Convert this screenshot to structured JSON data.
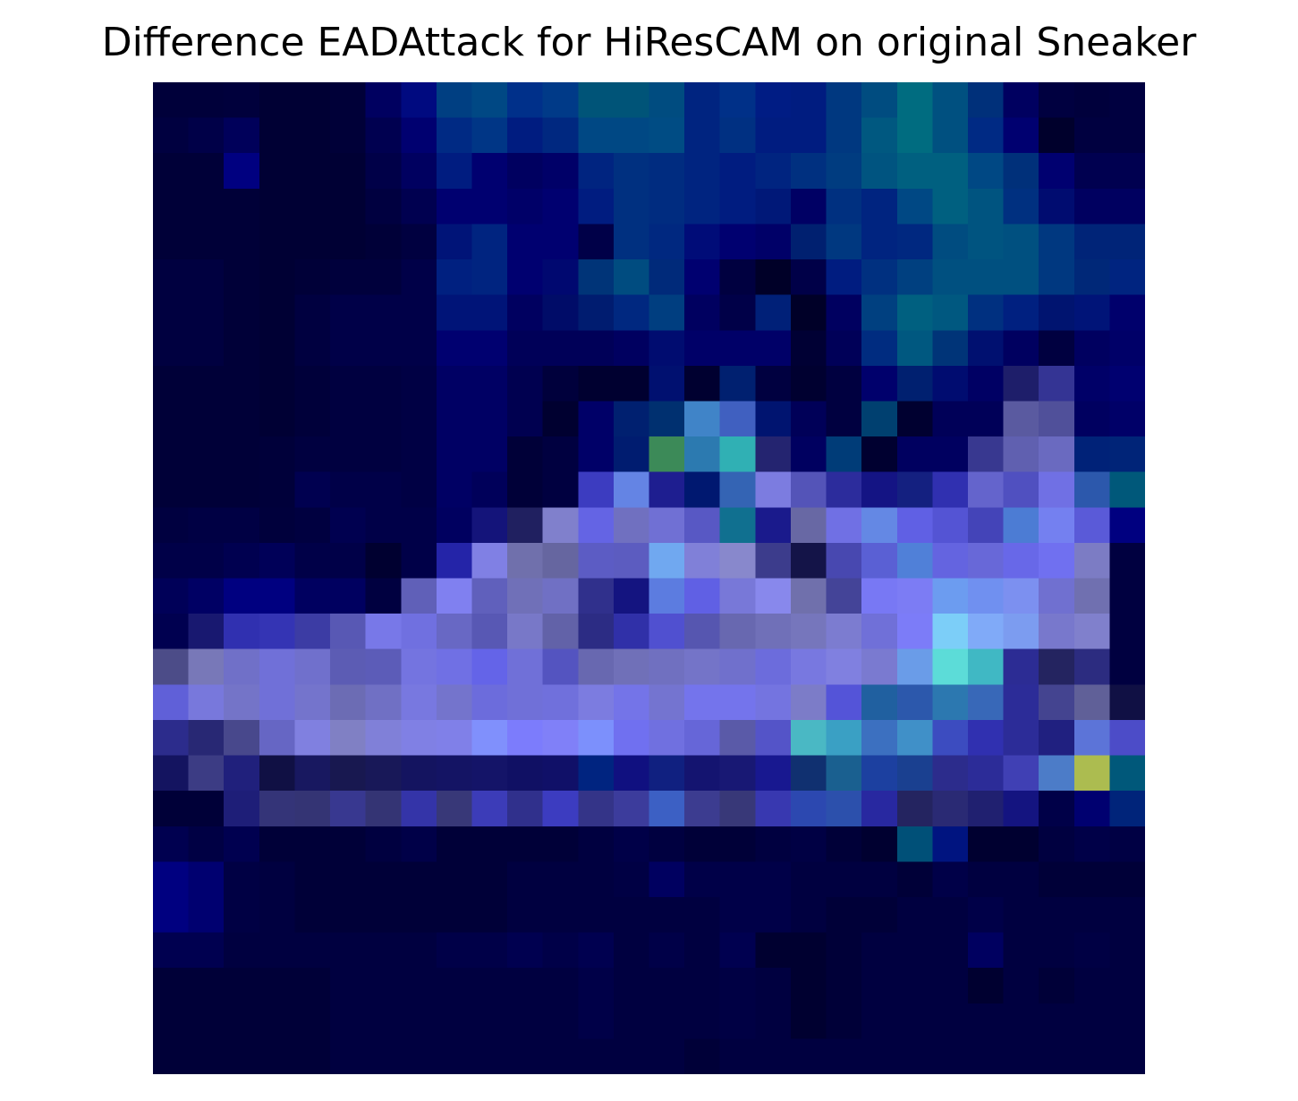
{
  "chart_data": {
    "type": "heatmap",
    "title": "Difference EADAttack for HiResCAM on original Sneaker",
    "xlabel": "",
    "ylabel": "",
    "axes_visible": false,
    "grid": false,
    "rows": 28,
    "cols": 28,
    "cells": [
      [
        "#00003a",
        "#00003a",
        "#00003c",
        "#000034",
        "#000034",
        "#000038",
        "#000060",
        "#000a80",
        "#003f82",
        "#004884",
        "#00308a",
        "#003a88",
        "#005478",
        "#005478",
        "#004c80",
        "#002480",
        "#003088",
        "#001c84",
        "#001c80",
        "#003880",
        "#004c80",
        "#006c80",
        "#005080",
        "#00307a",
        "#000060",
        "#000040",
        "#00003c",
        "#000040"
      ],
      [
        "#000040",
        "#000048",
        "#00005a",
        "#000034",
        "#000034",
        "#000038",
        "#000050",
        "#000070",
        "#002a84",
        "#003686",
        "#001c80",
        "#002880",
        "#004884",
        "#004884",
        "#004c84",
        "#002480",
        "#003082",
        "#001c80",
        "#001c80",
        "#003880",
        "#005880",
        "#006c80",
        "#005080",
        "#002a84",
        "#000070",
        "#00002c",
        "#000040",
        "#000040"
      ],
      [
        "#000038",
        "#000038",
        "#000080",
        "#000034",
        "#000034",
        "#000034",
        "#000048",
        "#000060",
        "#001c80",
        "#000070",
        "#000060",
        "#000068",
        "#002480",
        "#003080",
        "#002c80",
        "#002480",
        "#001c80",
        "#002480",
        "#003080",
        "#003c80",
        "#005480",
        "#006080",
        "#006080",
        "#004884",
        "#00307a",
        "#000070",
        "#000050",
        "#000050"
      ],
      [
        "#000038",
        "#000038",
        "#000038",
        "#000034",
        "#000034",
        "#000034",
        "#000040",
        "#000050",
        "#000070",
        "#000070",
        "#000068",
        "#000070",
        "#001c80",
        "#003080",
        "#002c80",
        "#002480",
        "#001c80",
        "#001878",
        "#000064",
        "#003080",
        "#002480",
        "#004884",
        "#006080",
        "#005480",
        "#003080",
        "#000c70",
        "#000060",
        "#000060"
      ],
      [
        "#000038",
        "#000038",
        "#000038",
        "#000034",
        "#000034",
        "#000034",
        "#000038",
        "#000040",
        "#001478",
        "#002480",
        "#000070",
        "#000070",
        "#000048",
        "#003080",
        "#002880",
        "#000c78",
        "#000070",
        "#000068",
        "#002070",
        "#003880",
        "#002480",
        "#002880",
        "#004c80",
        "#005480",
        "#005080",
        "#003880",
        "#002478",
        "#002478"
      ],
      [
        "#000040",
        "#000040",
        "#000038",
        "#000034",
        "#000038",
        "#00003c",
        "#00003c",
        "#000048",
        "#002080",
        "#002480",
        "#000070",
        "#000870",
        "#003478",
        "#004c80",
        "#002a7a",
        "#000070",
        "#000040",
        "#000028",
        "#000048",
        "#001c80",
        "#003080",
        "#004080",
        "#005080",
        "#005080",
        "#005080",
        "#003880",
        "#002878",
        "#002480"
      ],
      [
        "#000040",
        "#000040",
        "#000038",
        "#000034",
        "#000040",
        "#000048",
        "#000048",
        "#000048",
        "#001478",
        "#001478",
        "#000060",
        "#000c68",
        "#001c70",
        "#002880",
        "#003e80",
        "#000060",
        "#000048",
        "#002078",
        "#000028",
        "#000060",
        "#004080",
        "#006080",
        "#005880",
        "#003080",
        "#002080",
        "#001470",
        "#001478",
        "#00006c"
      ],
      [
        "#000040",
        "#000040",
        "#000038",
        "#000034",
        "#000040",
        "#000048",
        "#000048",
        "#000048",
        "#000070",
        "#000070",
        "#000058",
        "#000058",
        "#000058",
        "#000060",
        "#000c70",
        "#000068",
        "#000068",
        "#000068",
        "#000034",
        "#000058",
        "#002c80",
        "#005880",
        "#003478",
        "#001070",
        "#000060",
        "#000040",
        "#000060",
        "#000068"
      ],
      [
        "#000038",
        "#000038",
        "#000038",
        "#000034",
        "#00003a",
        "#000040",
        "#000040",
        "#000044",
        "#000064",
        "#000064",
        "#000050",
        "#00003c",
        "#000030",
        "#000030",
        "#001070",
        "#000030",
        "#002070",
        "#000040",
        "#000030",
        "#000040",
        "#00006c",
        "#002070",
        "#000c70",
        "#000064",
        "#1e1e6a",
        "#343494",
        "#000068",
        "#000070"
      ],
      [
        "#000038",
        "#000038",
        "#000038",
        "#000034",
        "#00003a",
        "#000040",
        "#000040",
        "#000044",
        "#000064",
        "#000064",
        "#000050",
        "#000030",
        "#000068",
        "#002070",
        "#003070",
        "#4084c8",
        "#4060c0",
        "#001470",
        "#000058",
        "#000040",
        "#004070",
        "#000030",
        "#000058",
        "#000058",
        "#5a5aa0",
        "#50509a",
        "#000060",
        "#000068"
      ],
      [
        "#000038",
        "#000038",
        "#000038",
        "#00003a",
        "#000040",
        "#000040",
        "#000040",
        "#000044",
        "#000064",
        "#000064",
        "#000038",
        "#000040",
        "#000068",
        "#001c70",
        "#3c8a58",
        "#2c7ab0",
        "#30b0b4",
        "#242470",
        "#000060",
        "#003c78",
        "#000030",
        "#000060",
        "#000060",
        "#383890",
        "#6060b0",
        "#6a6ac0",
        "#002278",
        "#002478"
      ],
      [
        "#000038",
        "#000038",
        "#000038",
        "#00003a",
        "#000050",
        "#000048",
        "#000048",
        "#000044",
        "#000064",
        "#00005a",
        "#000038",
        "#000040",
        "#3c3cc0",
        "#6484e4",
        "#1e1e90",
        "#001870",
        "#3464b4",
        "#7c7ce0",
        "#5454b8",
        "#2c2c9c",
        "#141484",
        "#142080",
        "#3030b0",
        "#6464cc",
        "#5050c0",
        "#7070e4",
        "#2c58ac",
        "#00587a"
      ],
      [
        "#000040",
        "#000044",
        "#000044",
        "#00003c",
        "#000040",
        "#000050",
        "#000048",
        "#000048",
        "#000060",
        "#14147a",
        "#202060",
        "#8080cc",
        "#6464e4",
        "#7070c0",
        "#7070d4",
        "#5858c4",
        "#107090",
        "#1a1a8c",
        "#6868a4",
        "#7070e4",
        "#6488e4",
        "#6060e4",
        "#5454d4",
        "#4444b8",
        "#4c7cd4",
        "#7480f0",
        "#5a5ad8",
        "#000080"
      ],
      [
        "#000048",
        "#000048",
        "#000050",
        "#000058",
        "#000048",
        "#000048",
        "#000030",
        "#000048",
        "#2424a8",
        "#8080e4",
        "#7070ac",
        "#6666a0",
        "#5c5cc4",
        "#5c5cc0",
        "#70a8f0",
        "#8080d8",
        "#8888cc",
        "#3c3c8c",
        "#141448",
        "#4848b0",
        "#5a60d4",
        "#5080d8",
        "#6464e0",
        "#6868d8",
        "#6868e8",
        "#7070f0",
        "#7c7cc4",
        "#000040"
      ],
      [
        "#000058",
        "#000064",
        "#000080",
        "#000080",
        "#000060",
        "#000060",
        "#000040",
        "#6060b8",
        "#8080f0",
        "#6060bc",
        "#7070b8",
        "#7070c4",
        "#30308c",
        "#141480",
        "#5c7ce0",
        "#6060e4",
        "#7878d8",
        "#8888ec",
        "#7070ac",
        "#444498",
        "#7878f4",
        "#7c7cf4",
        "#6c9cf0",
        "#7090f0",
        "#7c90f0",
        "#7070d0",
        "#7070b0",
        "#000040"
      ],
      [
        "#000050",
        "#181870",
        "#3030b0",
        "#3434b4",
        "#3c3ca4",
        "#5858b4",
        "#7878e8",
        "#7070e0",
        "#6868c4",
        "#5858b4",
        "#7878c8",
        "#6262a8",
        "#2c2c84",
        "#3030a8",
        "#5050d0",
        "#5656b0",
        "#6868b0",
        "#7070b8",
        "#7676bc",
        "#7c7cd0",
        "#7070d8",
        "#7c7cf8",
        "#7ccef8",
        "#80aaf8",
        "#7c9cf0",
        "#7878cc",
        "#8080cc",
        "#000040"
      ],
      [
        "#4c4c88",
        "#7878b8",
        "#7070c8",
        "#7070d8",
        "#7070cc",
        "#5c5cb4",
        "#5c5cb8",
        "#7474e0",
        "#7070e4",
        "#6464e8",
        "#7070d8",
        "#5454c0",
        "#6868b0",
        "#7070b8",
        "#7070c0",
        "#7474c8",
        "#7070cc",
        "#6c6cdc",
        "#7878e0",
        "#8080e0",
        "#7a7ad0",
        "#6a9ce8",
        "#5cdcd8",
        "#40b8c4",
        "#2c2c94",
        "#242460",
        "#2c2c80",
        "#000040"
      ],
      [
        "#6060d8",
        "#7878dc",
        "#7474c8",
        "#7070d8",
        "#7474cc",
        "#6c6cb4",
        "#7070c4",
        "#7878e0",
        "#7474cc",
        "#6c6cdc",
        "#7070d8",
        "#7070dc",
        "#7c7ce0",
        "#7474e8",
        "#7474d0",
        "#7474ec",
        "#7474ec",
        "#7474e0",
        "#7c7cc8",
        "#5454d8",
        "#2060a0",
        "#2c58ac",
        "#2c78b0",
        "#3868b8",
        "#2c2c98",
        "#444490",
        "#606098",
        "#101044"
      ],
      [
        "#2c2c8c",
        "#282874",
        "#48488c",
        "#6666c4",
        "#8080e0",
        "#8080c4",
        "#8080d8",
        "#8080e4",
        "#8080e8",
        "#8090fc",
        "#7c7cfc",
        "#8080f8",
        "#7c90fc",
        "#7070f0",
        "#7070e0",
        "#6666d8",
        "#5a5aa8",
        "#5454c8",
        "#4ab8c4",
        "#3aa0c4",
        "#3c70c0",
        "#4090c8",
        "#3c4cc0",
        "#3030b0",
        "#2c2c98",
        "#202080",
        "#5c74d8",
        "#4c4cc8"
      ],
      [
        "#141460",
        "#3c3c84",
        "#20207c",
        "#101044",
        "#181860",
        "#181850",
        "#181858",
        "#141460",
        "#141464",
        "#141468",
        "#101064",
        "#101068",
        "#002480",
        "#101080",
        "#102080",
        "#141470",
        "#181874",
        "#181890",
        "#103070",
        "#1a6090",
        "#1c40a0",
        "#1a4090",
        "#2c2c8c",
        "#2c2c98",
        "#4040b4",
        "#4c7cc8",
        "#acbc50",
        "#00587a"
      ],
      [
        "#000038",
        "#000038",
        "#1e1e78",
        "#343478",
        "#343474",
        "#383890",
        "#343474",
        "#3434a8",
        "#383878",
        "#3c3cb8",
        "#30308c",
        "#3c3cc0",
        "#343488",
        "#3c3c9c",
        "#3c60c4",
        "#3c3c90",
        "#383878",
        "#3838b0",
        "#2c48b0",
        "#2c50ac",
        "#2828a0",
        "#242460",
        "#2a2a74",
        "#202070",
        "#141480",
        "#000048",
        "#000070",
        "#00247a"
      ],
      [
        "#000050",
        "#000044",
        "#000050",
        "#000038",
        "#000038",
        "#000038",
        "#000040",
        "#000048",
        "#000038",
        "#000038",
        "#000038",
        "#000038",
        "#000040",
        "#000048",
        "#000040",
        "#000038",
        "#000038",
        "#000040",
        "#000044",
        "#000038",
        "#000030",
        "#005078",
        "#001480",
        "#000030",
        "#000030",
        "#000040",
        "#000048",
        "#000044"
      ],
      [
        "#000080",
        "#000070",
        "#000044",
        "#000040",
        "#000038",
        "#000038",
        "#000038",
        "#000038",
        "#000038",
        "#000038",
        "#000040",
        "#000040",
        "#000040",
        "#000044",
        "#000060",
        "#000048",
        "#000048",
        "#000048",
        "#000040",
        "#000040",
        "#000040",
        "#000038",
        "#000048",
        "#000040",
        "#000040",
        "#000038",
        "#000038",
        "#000038"
      ],
      [
        "#000080",
        "#000070",
        "#000044",
        "#000040",
        "#000038",
        "#000038",
        "#000038",
        "#000038",
        "#000038",
        "#000038",
        "#000040",
        "#000040",
        "#000040",
        "#000040",
        "#000040",
        "#000040",
        "#000048",
        "#000048",
        "#000040",
        "#000038",
        "#000038",
        "#000040",
        "#000040",
        "#000048",
        "#000040",
        "#000040",
        "#000040",
        "#000040"
      ],
      [
        "#000050",
        "#000050",
        "#000040",
        "#000040",
        "#000040",
        "#000040",
        "#000040",
        "#000040",
        "#000048",
        "#000048",
        "#000050",
        "#000048",
        "#000050",
        "#000040",
        "#000048",
        "#000040",
        "#000050",
        "#000030",
        "#000030",
        "#000038",
        "#000040",
        "#000040",
        "#000040",
        "#000060",
        "#000040",
        "#000040",
        "#000044",
        "#000040"
      ],
      [
        "#000038",
        "#000038",
        "#000038",
        "#000038",
        "#000038",
        "#000040",
        "#000040",
        "#000040",
        "#000040",
        "#000040",
        "#000040",
        "#000040",
        "#000048",
        "#000040",
        "#000040",
        "#000040",
        "#000044",
        "#000040",
        "#000030",
        "#000038",
        "#000040",
        "#000040",
        "#000040",
        "#000030",
        "#000040",
        "#000038",
        "#000040",
        "#000040"
      ],
      [
        "#000038",
        "#000038",
        "#000038",
        "#000038",
        "#000038",
        "#000040",
        "#000040",
        "#000040",
        "#000040",
        "#000040",
        "#000040",
        "#000040",
        "#000048",
        "#000040",
        "#000040",
        "#000040",
        "#000044",
        "#000040",
        "#000030",
        "#000038",
        "#000040",
        "#000040",
        "#000040",
        "#000040",
        "#000040",
        "#000040",
        "#000040",
        "#000040"
      ],
      [
        "#000038",
        "#000038",
        "#000038",
        "#000038",
        "#000038",
        "#000040",
        "#000040",
        "#000040",
        "#000040",
        "#000040",
        "#000040",
        "#000040",
        "#000040",
        "#000040",
        "#000040",
        "#000038",
        "#000040",
        "#000040",
        "#000040",
        "#000040",
        "#000040",
        "#000040",
        "#000040",
        "#000040",
        "#000040",
        "#000040",
        "#000040",
        "#000040"
      ]
    ]
  }
}
